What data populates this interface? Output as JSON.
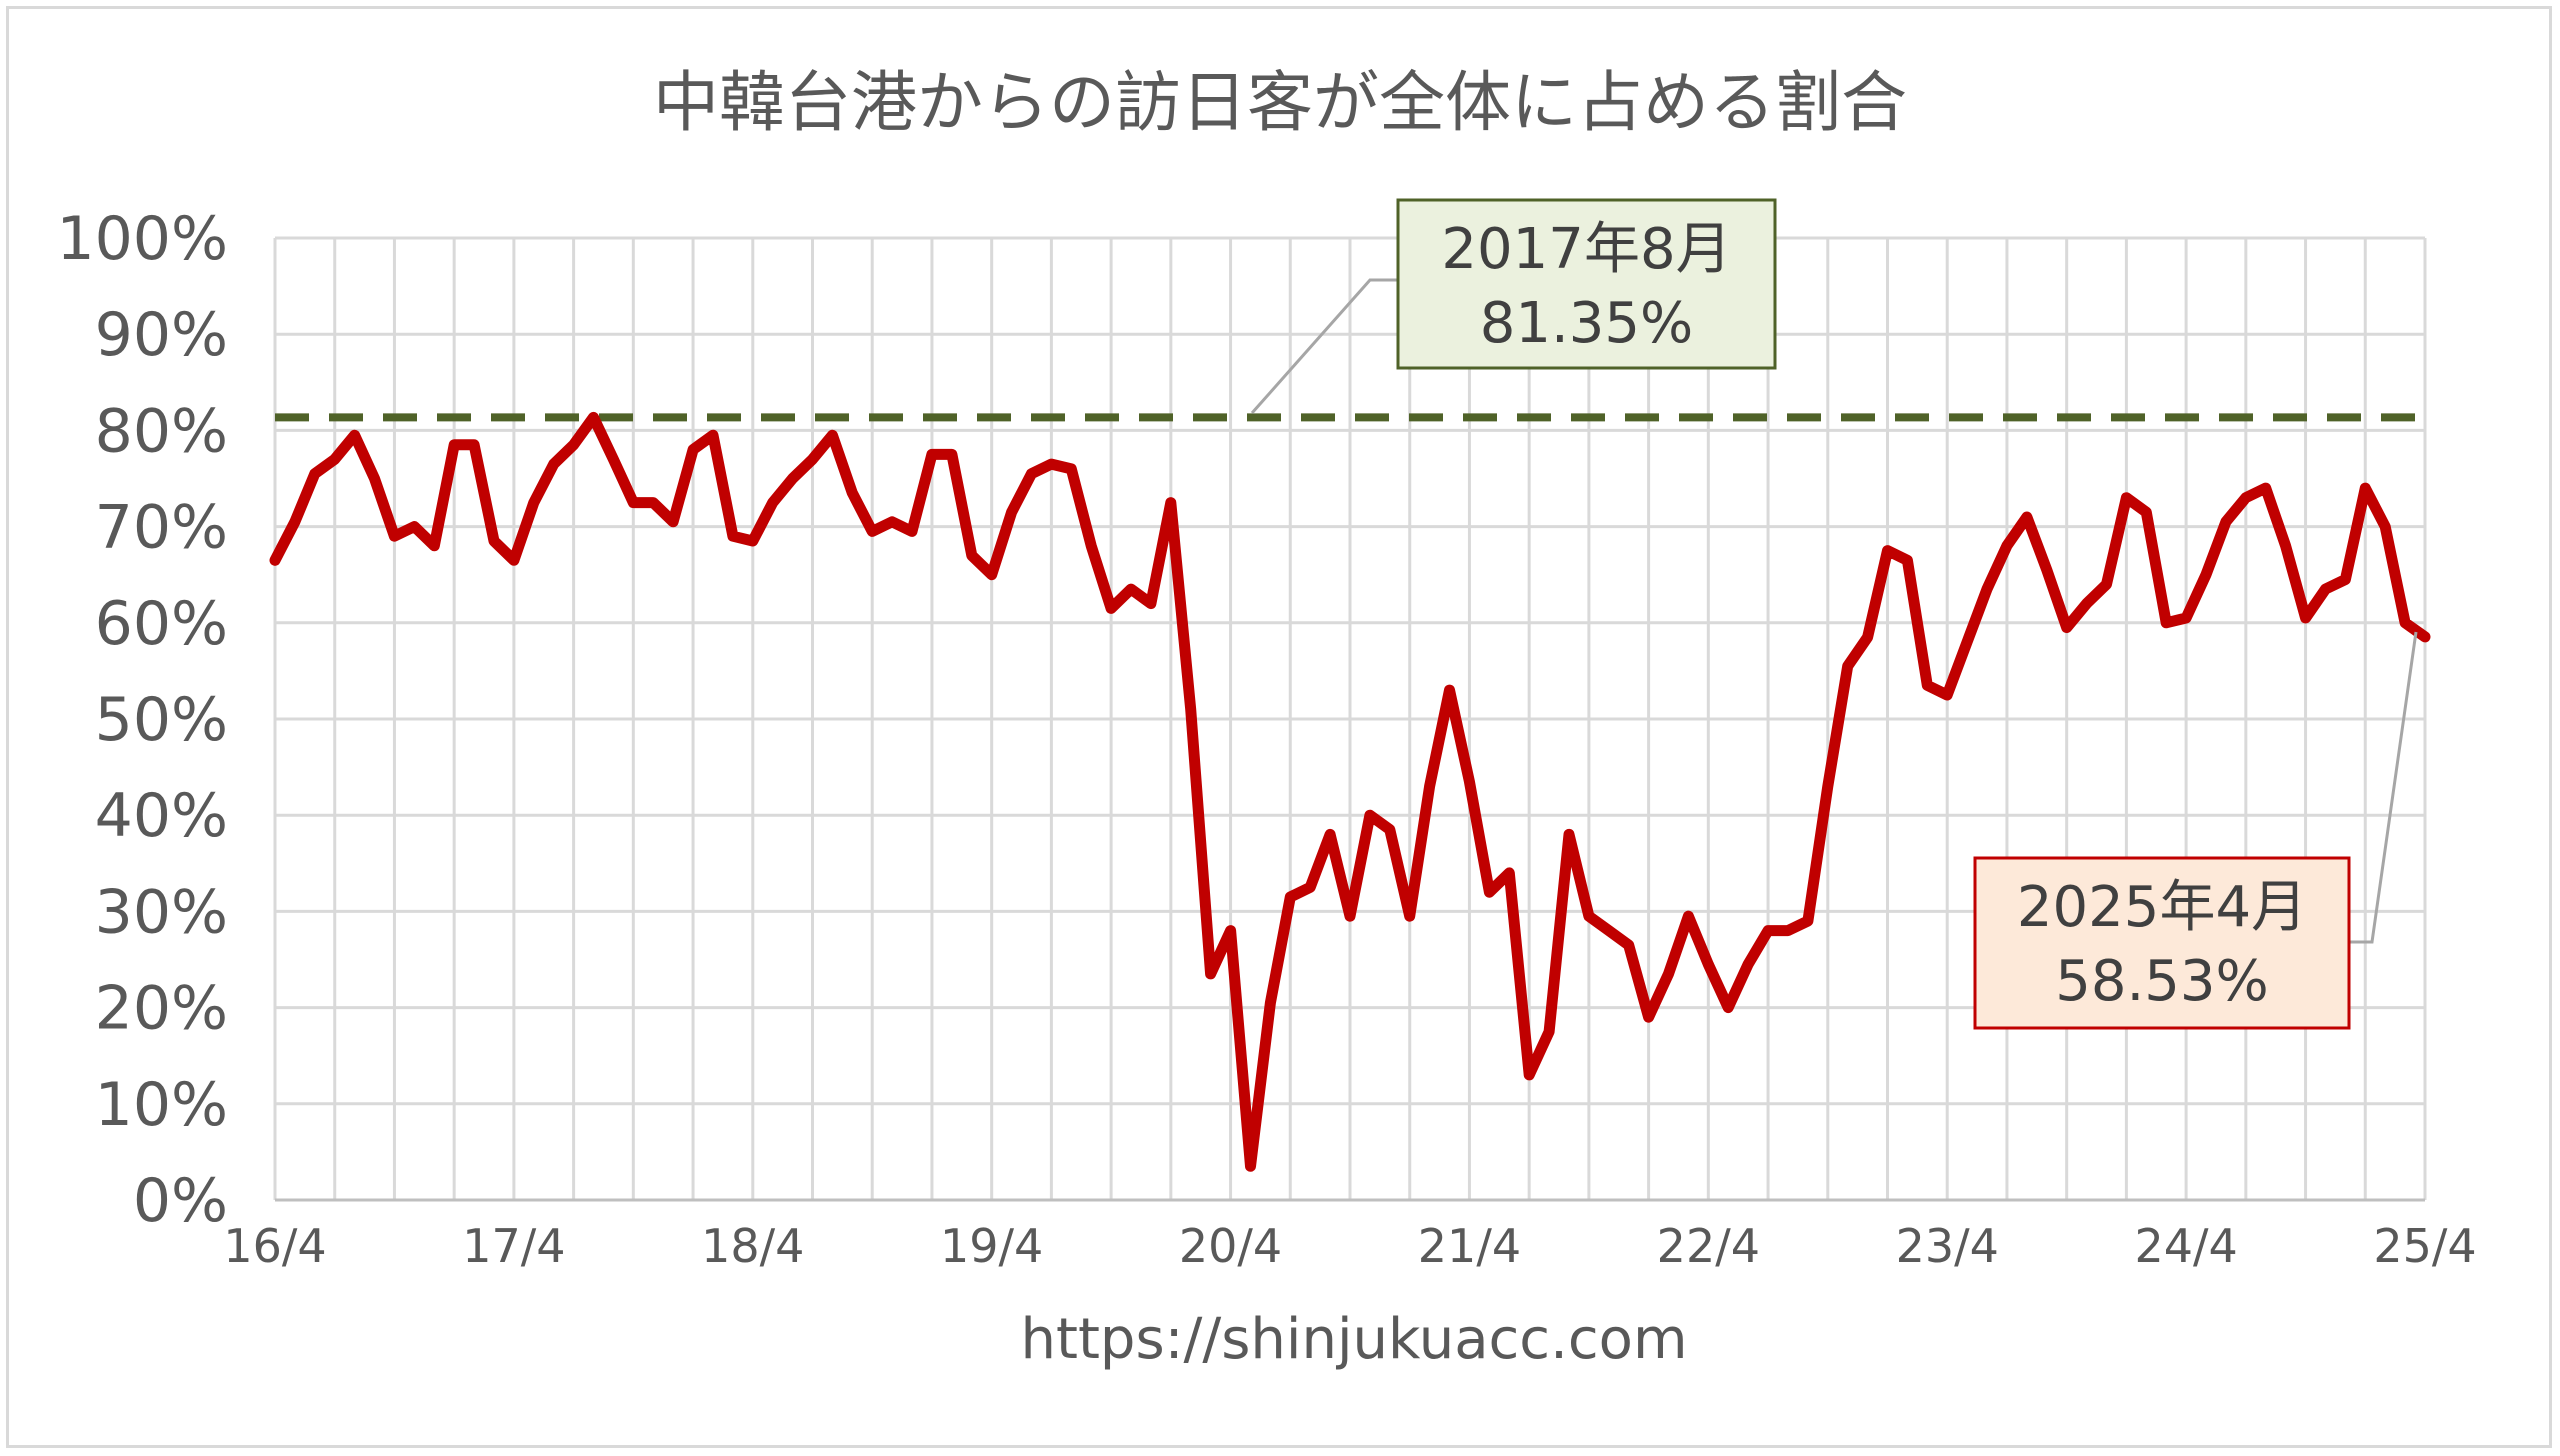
{
  "chart_data": {
    "type": "line",
    "title": "中韓台港からの訪日客が全体に占める割合",
    "source": "https://shinjukuacc.com",
    "ylim": [
      0,
      100
    ],
    "y_ticks": [
      "0%",
      "10%",
      "20%",
      "30%",
      "40%",
      "50%",
      "60%",
      "70%",
      "80%",
      "90%",
      "100%"
    ],
    "x_ticks": [
      "16/4",
      "17/4",
      "18/4",
      "19/4",
      "20/4",
      "21/4",
      "22/4",
      "23/4",
      "24/4",
      "25/4"
    ],
    "x_start": "2016-04",
    "x_end": "2025-04",
    "grid": true,
    "series": [
      {
        "color": "#c00000",
        "values": [
          66.5,
          70.5,
          75.5,
          77,
          79.5,
          75,
          69,
          70,
          68,
          78.5,
          78.5,
          68.5,
          66.5,
          72.5,
          76.5,
          78.5,
          81.35,
          77,
          72.5,
          72.5,
          70.5,
          78,
          79.5,
          69,
          68.5,
          72.5,
          75,
          77,
          79.5,
          73.5,
          69.5,
          70.5,
          69.5,
          77.5,
          77.5,
          67,
          65,
          71.5,
          75.5,
          76.5,
          76,
          68,
          61.5,
          63.5,
          62,
          72.5,
          51,
          23.5,
          28,
          3.5,
          20.5,
          31.5,
          32.5,
          38,
          29.5,
          40,
          38.5,
          29.5,
          43,
          53,
          43.5,
          32,
          34,
          13,
          17.5,
          38,
          29.5,
          28,
          26.5,
          19,
          23.5,
          29.5,
          24.5,
          20,
          24.5,
          28,
          28,
          29,
          43,
          55.5,
          58.5,
          67.5,
          66.5,
          53.5,
          52.5,
          58,
          63.5,
          68,
          71,
          65.5,
          59.5,
          62,
          64,
          73,
          71.5,
          60,
          60.5,
          65,
          70.5,
          73,
          74,
          68,
          60.5,
          63.5,
          64.5,
          74,
          70,
          60,
          58.53
        ]
      }
    ],
    "reference_line": {
      "value": 81.35,
      "color": "#4f6228",
      "style": "dashed"
    },
    "annotations": [
      {
        "line1": "2017年8月",
        "line2": "81.35%",
        "fill": "#ebf1de",
        "border": "#4f6228",
        "target_index": 16
      },
      {
        "line1": "2025年4月",
        "line2": "58.53%",
        "fill": "#fde9d9",
        "border": "#c00000",
        "target_index": 108
      }
    ]
  }
}
